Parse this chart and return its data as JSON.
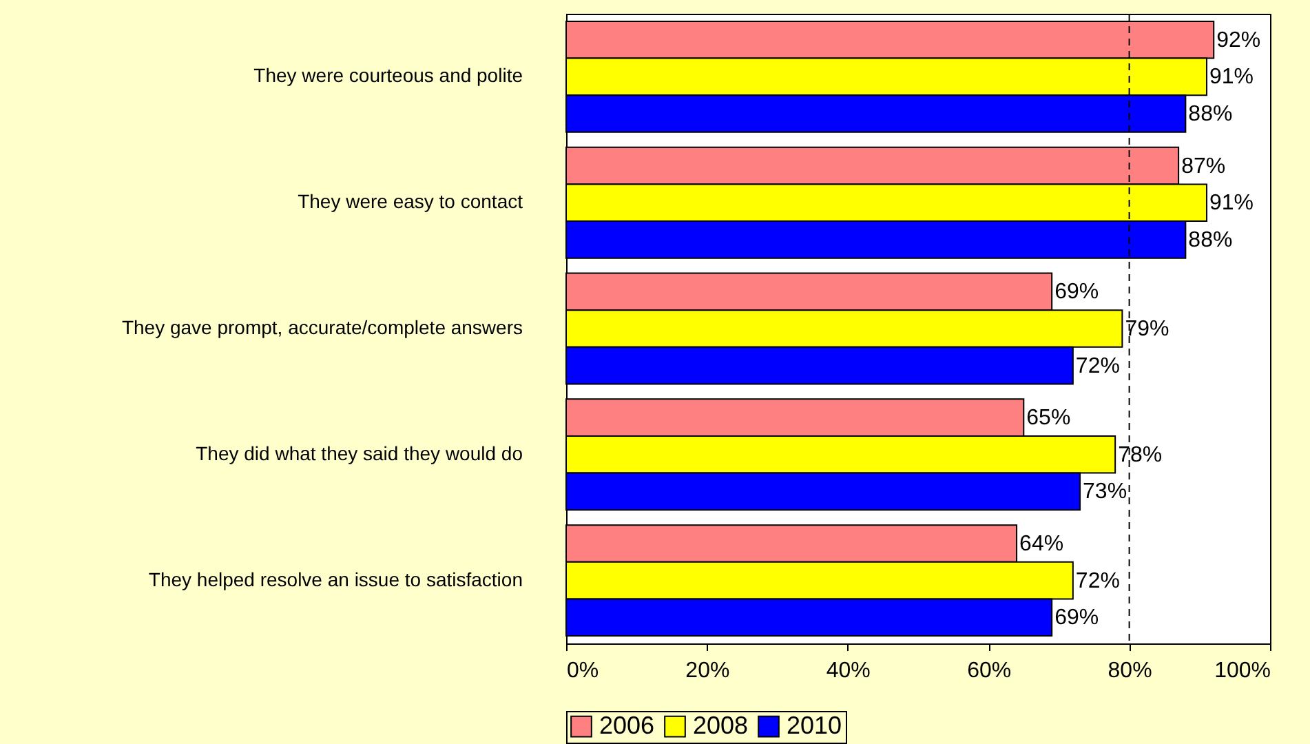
{
  "chart_data": {
    "type": "bar",
    "orientation": "horizontal",
    "categories": [
      "They were courteous and polite",
      "They were easy to contact",
      "They gave prompt, accurate/complete answers",
      "They did what they said they would do",
      "They helped resolve an issue to satisfaction"
    ],
    "series": [
      {
        "name": "2006",
        "color": "#ff8080",
        "values": [
          92,
          87,
          69,
          65,
          64
        ],
        "value_labels": [
          "92%",
          "87%",
          "69%",
          "65%",
          "64%"
        ]
      },
      {
        "name": "2008",
        "color": "#ffff00",
        "values": [
          91,
          91,
          79,
          78,
          72
        ],
        "value_labels": [
          "91%",
          "91%",
          "79%",
          "78%",
          "72%"
        ]
      },
      {
        "name": "2010",
        "color": "#0000ff",
        "values": [
          88,
          88,
          72,
          73,
          69
        ],
        "value_labels": [
          "88%",
          "88%",
          "72%",
          "73%",
          "69%"
        ]
      }
    ],
    "xlim": [
      0,
      100
    ],
    "xticks": [
      {
        "value": 0,
        "label": "0%"
      },
      {
        "value": 20,
        "label": "20%"
      },
      {
        "value": 40,
        "label": "40%"
      },
      {
        "value": 60,
        "label": "60%"
      },
      {
        "value": 80,
        "label": "80%"
      },
      {
        "value": 100,
        "label": "100%"
      }
    ],
    "ref_lines": [
      {
        "axis": "x",
        "value": 80,
        "line_style": "dashed"
      }
    ],
    "legend": "bottom",
    "grid": false
  }
}
